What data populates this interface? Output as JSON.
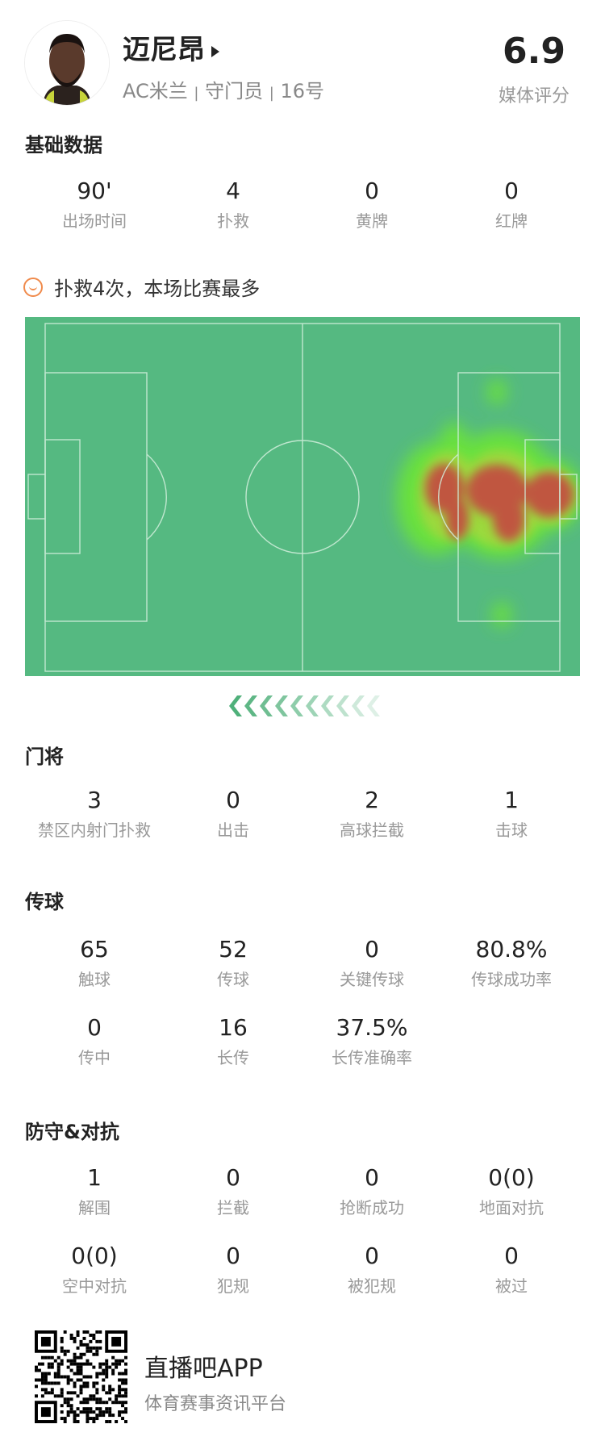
{
  "player": {
    "name": "迈尼昂",
    "team": "AC米兰",
    "position": "守门员",
    "number": "16号",
    "separator": "|",
    "rating": "6.9",
    "rating_label": "媒体评分"
  },
  "basic": {
    "title": "基础数据",
    "stats": [
      {
        "value": "90'",
        "label": "出场时间"
      },
      {
        "value": "4",
        "label": "扑救"
      },
      {
        "value": "0",
        "label": "黄牌"
      },
      {
        "value": "0",
        "label": "红牌"
      }
    ]
  },
  "highlight": {
    "icon": "smile-icon",
    "text": "扑救4次，本场比赛最多",
    "color": "#f08a4b"
  },
  "heatmap": {
    "pitch_color": "#55b981",
    "hot_color": "#c0573f",
    "warm_color": "#6be33a",
    "direction": "attacking-left"
  },
  "goalkeeping": {
    "title": "门将",
    "stats": [
      {
        "value": "3",
        "label": "禁区内射门扑救"
      },
      {
        "value": "0",
        "label": "出击"
      },
      {
        "value": "2",
        "label": "高球拦截"
      },
      {
        "value": "1",
        "label": "击球"
      }
    ]
  },
  "passing": {
    "title": "传球",
    "stats": [
      {
        "value": "65",
        "label": "触球"
      },
      {
        "value": "52",
        "label": "传球"
      },
      {
        "value": "0",
        "label": "关键传球"
      },
      {
        "value": "80.8%",
        "label": "传球成功率"
      },
      {
        "value": "0",
        "label": "传中"
      },
      {
        "value": "16",
        "label": "长传"
      },
      {
        "value": "37.5%",
        "label": "长传准确率"
      }
    ]
  },
  "defense": {
    "title": "防守&对抗",
    "stats": [
      {
        "value": "1",
        "label": "解围"
      },
      {
        "value": "0",
        "label": "拦截"
      },
      {
        "value": "0",
        "label": "抢断成功"
      },
      {
        "value": "0(0)",
        "label": "地面对抗"
      },
      {
        "value": "0(0)",
        "label": "空中对抗"
      },
      {
        "value": "0",
        "label": "犯规"
      },
      {
        "value": "0",
        "label": "被犯规"
      },
      {
        "value": "0",
        "label": "被过"
      }
    ]
  },
  "footer": {
    "app_name": "直播吧APP",
    "tagline": "体育赛事资讯平台"
  }
}
